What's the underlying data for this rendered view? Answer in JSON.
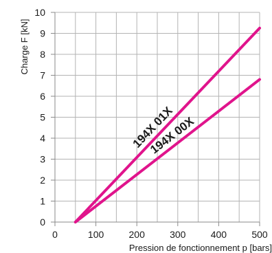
{
  "chart_data": {
    "type": "line",
    "xlabel": "Pression de fonctionnement p [bars]",
    "ylabel": "Charge F [kN]",
    "xlim": [
      0,
      500
    ],
    "ylim": [
      0,
      10
    ],
    "x_ticks": [
      "0",
      "100",
      "200",
      "300",
      "400",
      "500"
    ],
    "y_ticks": [
      "0",
      "1",
      "2",
      "3",
      "4",
      "5",
      "6",
      "7",
      "8",
      "9",
      "10"
    ],
    "grid": true,
    "grid_x_step": 50,
    "grid_y_step": 1,
    "line_color": "#e0148c",
    "series": [
      {
        "name": "194X 01X",
        "x": [
          50,
          500
        ],
        "y": [
          0,
          9.25
        ],
        "label_at_x": 255
      },
      {
        "name": "194X 00X",
        "x": [
          50,
          500
        ],
        "y": [
          0,
          6.8
        ],
        "label_at_x": 300
      }
    ]
  }
}
